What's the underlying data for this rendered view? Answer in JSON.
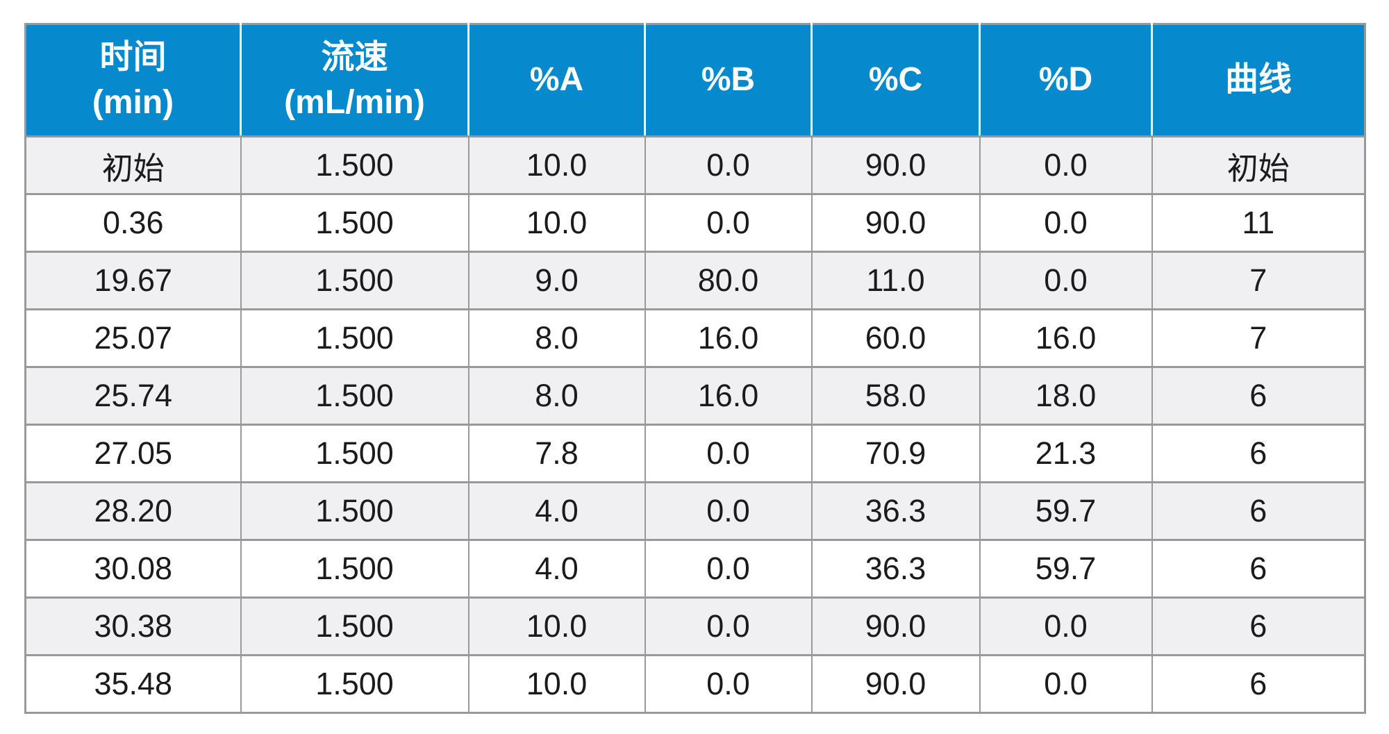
{
  "colors": {
    "header_bg": "#0789CE",
    "header_text": "#FFFFFF",
    "border_gray": "#97999B",
    "row_alt_bg": "#F0F0F2",
    "row_bg": "#FFFFFF",
    "text": "#1B1B1D"
  },
  "table": {
    "columns": [
      {
        "name": "time",
        "lines": [
          "时间",
          "(min)"
        ]
      },
      {
        "name": "flow-rate",
        "lines": [
          "流速",
          "(mL/min)"
        ]
      },
      {
        "name": "percent-a",
        "lines": [
          "%A"
        ]
      },
      {
        "name": "percent-b",
        "lines": [
          "%B"
        ]
      },
      {
        "name": "percent-c",
        "lines": [
          "%C"
        ]
      },
      {
        "name": "percent-d",
        "lines": [
          "%D"
        ]
      },
      {
        "name": "curve",
        "lines": [
          "曲线"
        ]
      }
    ]
  },
  "chart_data": {
    "type": "table",
    "title": "",
    "columns": [
      "时间 (min)",
      "流速 (mL/min)",
      "%A",
      "%B",
      "%C",
      "%D",
      "曲线"
    ],
    "rows": [
      [
        "初始",
        "1.500",
        "10.0",
        "0.0",
        "90.0",
        "0.0",
        "初始"
      ],
      [
        "0.36",
        "1.500",
        "10.0",
        "0.0",
        "90.0",
        "0.0",
        "11"
      ],
      [
        "19.67",
        "1.500",
        "9.0",
        "80.0",
        "11.0",
        "0.0",
        "7"
      ],
      [
        "25.07",
        "1.500",
        "8.0",
        "16.0",
        "60.0",
        "16.0",
        "7"
      ],
      [
        "25.74",
        "1.500",
        "8.0",
        "16.0",
        "58.0",
        "18.0",
        "6"
      ],
      [
        "27.05",
        "1.500",
        "7.8",
        "0.0",
        "70.9",
        "21.3",
        "6"
      ],
      [
        "28.20",
        "1.500",
        "4.0",
        "0.0",
        "36.3",
        "59.7",
        "6"
      ],
      [
        "30.08",
        "1.500",
        "4.0",
        "0.0",
        "36.3",
        "59.7",
        "6"
      ],
      [
        "30.38",
        "1.500",
        "10.0",
        "0.0",
        "90.0",
        "0.0",
        "6"
      ],
      [
        "35.48",
        "1.500",
        "10.0",
        "0.0",
        "90.0",
        "0.0",
        "6"
      ]
    ]
  }
}
